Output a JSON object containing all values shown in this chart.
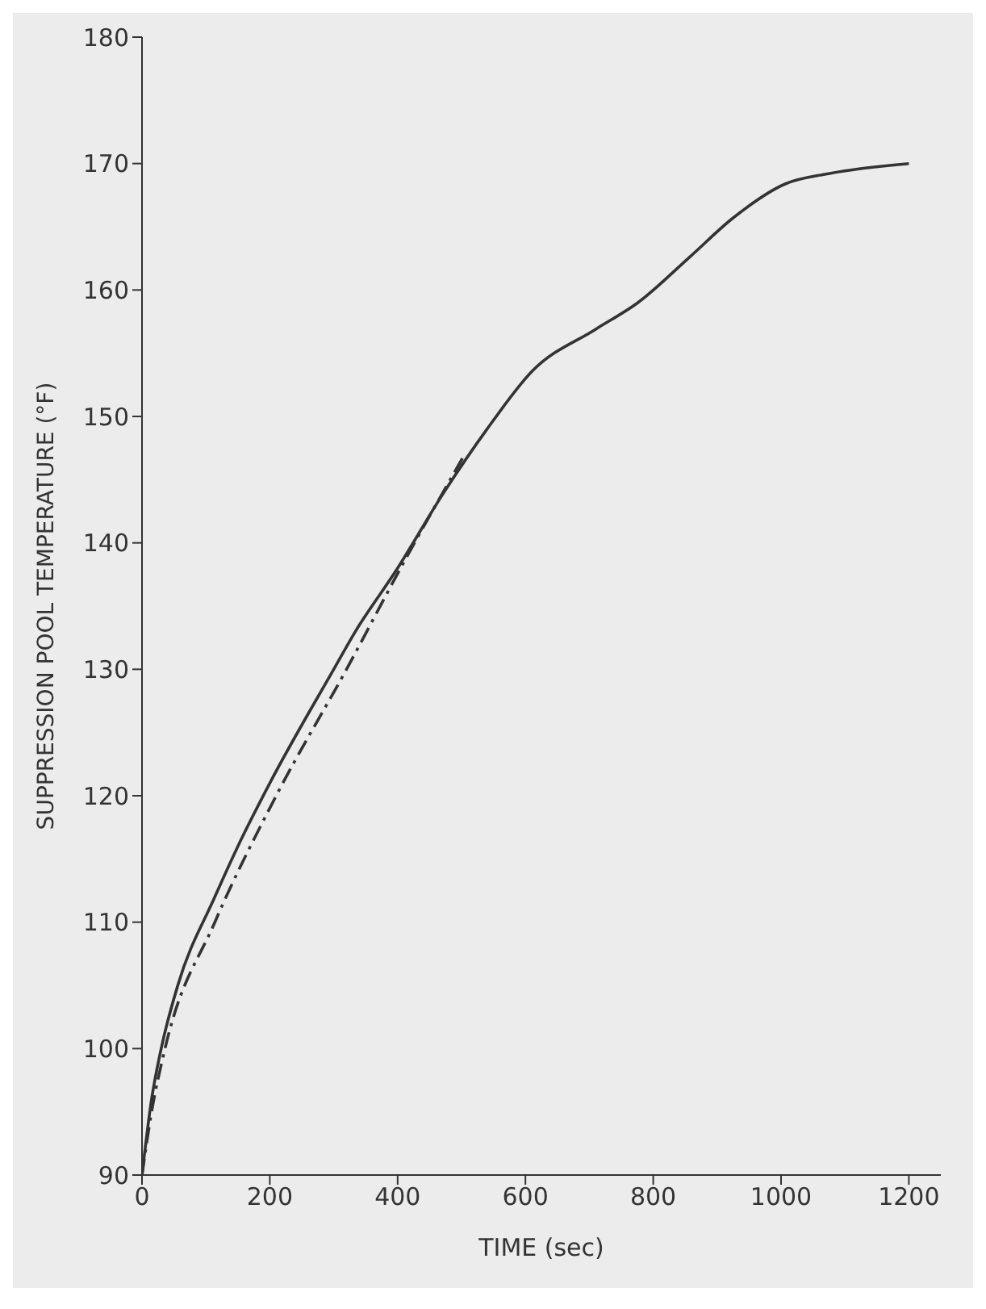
{
  "chart_data": {
    "type": "line",
    "xlabel": "TIME (sec)",
    "ylabel": "SUPPRESSION POOL TEMPERATURE (°F)",
    "xlim": [
      0,
      1250
    ],
    "xticks": [
      0,
      200,
      400,
      600,
      800,
      1000,
      1200
    ],
    "ylim": [
      90,
      180
    ],
    "yticks": [
      90,
      100,
      110,
      120,
      130,
      140,
      150,
      160,
      170,
      180
    ],
    "marker": "none",
    "series": [
      {
        "color": "#333333",
        "line_style": "solid",
        "x": [
          0,
          15,
          30,
          56,
          114,
          150,
          200,
          300,
          334,
          400,
          470,
          540,
          611,
          710,
          776,
          859,
          925,
          1007,
          1074,
          1200
        ],
        "values": [
          90,
          96,
          100,
          105,
          112,
          116,
          121,
          130,
          133,
          138,
          143.8,
          149,
          153.6,
          156.9,
          159,
          162.7,
          165.7,
          168.4,
          169.2,
          170
        ]
      },
      {
        "color": "#333333",
        "line_style": "dashed",
        "x": [
          0,
          15,
          36,
          114,
          210,
          320,
          410,
          505
        ],
        "values": [
          90,
          95,
          100,
          110,
          120,
          130,
          138.5,
          147
        ]
      }
    ]
  }
}
